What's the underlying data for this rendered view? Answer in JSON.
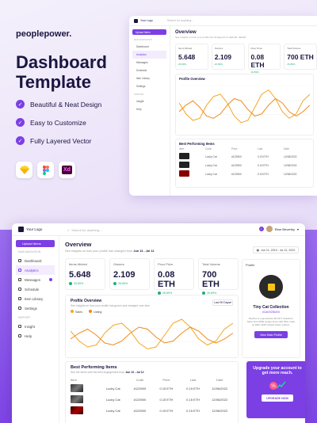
{
  "brand": "peoplepower.",
  "hero": {
    "line1": "Dashboard",
    "line2": "Template"
  },
  "features": [
    "Beautiful & Neat Design",
    "Easy to Customize",
    "Fully Layered Vector"
  ],
  "tools": [
    "sketch-icon",
    "figma-icon",
    "xd-icon"
  ],
  "tool_labels": {
    "xd": "Xd"
  },
  "colors": {
    "accent": "#7b3fe4",
    "positive": "#22b07d",
    "sales": "#f5a623",
    "listing": "#f08a1c"
  },
  "app": {
    "logo": "Your Logo",
    "search_placeholder": "Search for anything...",
    "user": "Elise Beverley",
    "upload": "Upload Items",
    "nav_section": "MAIN NAVIGATION",
    "support_section": "SUPPORT",
    "nav": [
      "Dashboard",
      "Analytics",
      "Messages",
      "Schedule",
      "Item Library",
      "Settings"
    ],
    "support": [
      "Insight",
      "Help"
    ],
    "overview": {
      "title": "Overview",
      "subtitle": "See insights on how your profile has changed from",
      "range": "Jun 13 - Jul 12",
      "date_filter": "Jun 11, 2019 - Jul 12, 2022"
    },
    "stats": [
      {
        "label": "Items Minted",
        "value": "5.648",
        "change": "26.89%"
      },
      {
        "label": "Owners",
        "value": "2.109",
        "change": "26.89%"
      },
      {
        "label": "Floor Price",
        "value": "0.08 ETH",
        "change": "26.89%"
      },
      {
        "label": "Total Volume",
        "value": "700 ETH",
        "change": "26.89%"
      }
    ],
    "profile_chart": {
      "title": "Profile Overview",
      "subtitle": "See insights on how your profile has grown and changed over time",
      "filter": "Last 90 Days"
    },
    "profile": {
      "title": "Profile",
      "name": "Tiny Cat Collection",
      "handle": "#Cat19266100",
      "desc": "PeoPeo is a generative 3D NFT collection. More than 6000 unique items with 200+ traits on ERC-1155 Unique Token system.",
      "button": "View Main Profile"
    },
    "best": {
      "title": "Best Performing Items",
      "subtitle": "See the items with the best engagement from",
      "range": "Jun 13 - Jul 12",
      "columns": [
        "Item",
        "Code",
        "Price",
        "Last",
        "Date"
      ],
      "rows": [
        {
          "item": "Lucky Cat",
          "code": "#123900",
          "price": "0.15 ETH",
          "last": "0.15 ETH",
          "date": "12/06/2022"
        },
        {
          "item": "Lucky Cat",
          "code": "#123900",
          "price": "0.15 ETH",
          "last": "0.15 ETH",
          "date": "12/06/2022"
        },
        {
          "item": "Lucky Cat",
          "code": "#123900",
          "price": "0.15 ETH",
          "last": "0.15 ETH",
          "date": "12/06/2022"
        }
      ]
    },
    "promo": {
      "text": "Upgrade your account to get more reach.",
      "button": "UPGRADE NOW"
    }
  },
  "chart_data": {
    "type": "line",
    "x": [
      1,
      2,
      3,
      4,
      5,
      6,
      7,
      8,
      9,
      10,
      11,
      12,
      13,
      14,
      15,
      16,
      17,
      18,
      19,
      20
    ],
    "series": [
      {
        "name": "Sales",
        "values": [
          60,
          35,
          20,
          25,
          55,
          75,
          80,
          60,
          30,
          15,
          20,
          50,
          80,
          90,
          70,
          40,
          25,
          35,
          65,
          80
        ]
      },
      {
        "name": "Listing",
        "values": [
          40,
          55,
          65,
          50,
          30,
          25,
          35,
          55,
          70,
          65,
          45,
          30,
          35,
          55,
          70,
          60,
          40,
          30,
          40,
          55
        ]
      }
    ],
    "ylim": [
      0,
      100
    ]
  }
}
